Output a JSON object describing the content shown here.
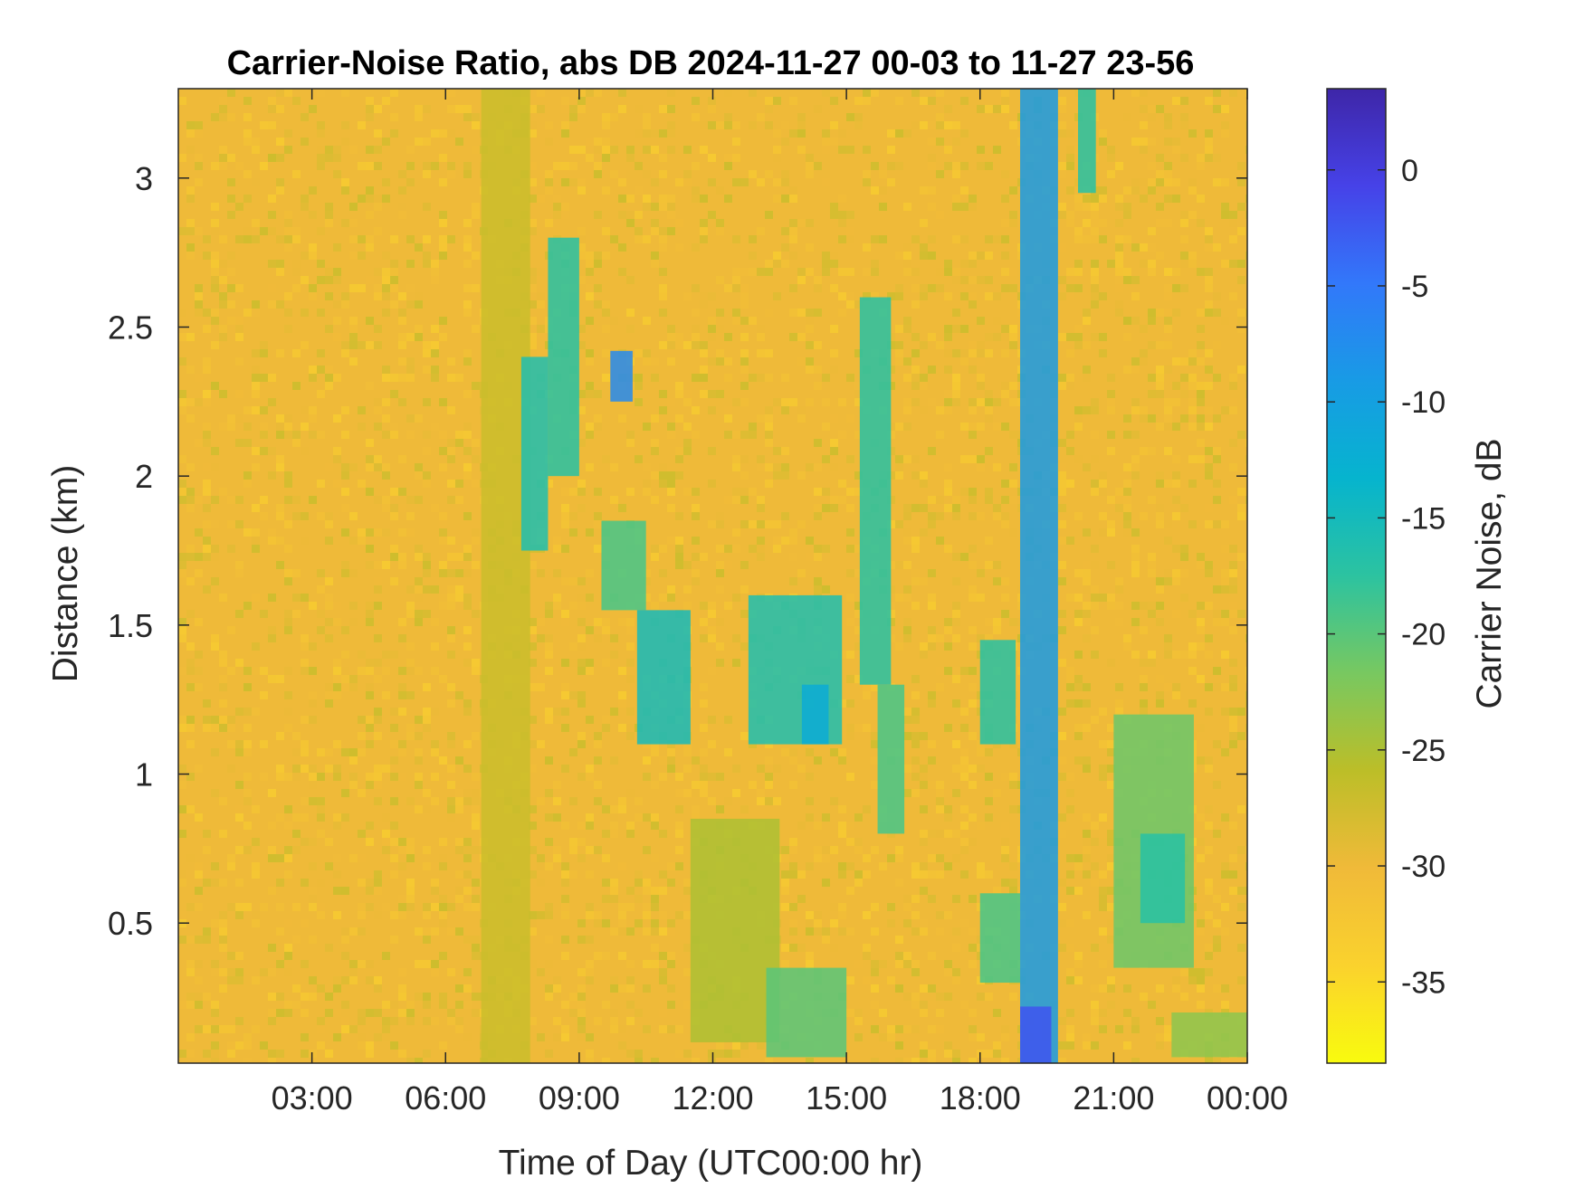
{
  "chart_data": {
    "type": "heatmap",
    "title": "Carrier-Noise Ratio, abs DB 2024-11-27 00-03 to 11-27 23-56",
    "xlabel": "Time of Day (UTC00:00 hr)",
    "ylabel": "Distance (km)",
    "colorbar_label": "Carrier Noise, dB",
    "x_units": "hours",
    "xlim": [
      0.0,
      24.0
    ],
    "ylim": [
      0.03,
      3.3
    ],
    "clim": [
      -38.5,
      3.5
    ],
    "x_ticks": [
      3,
      6,
      9,
      12,
      15,
      18,
      21,
      24
    ],
    "x_tick_labels": [
      "03:00",
      "06:00",
      "09:00",
      "12:00",
      "15:00",
      "18:00",
      "21:00",
      "00:00"
    ],
    "y_ticks": [
      0.5,
      1,
      1.5,
      2,
      2.5,
      3
    ],
    "y_tick_labels": [
      "0.5",
      "1",
      "1.5",
      "2",
      "2.5",
      "3"
    ],
    "colorbar_ticks": [
      0,
      -5,
      -10,
      -15,
      -20,
      -25,
      -30,
      -35
    ],
    "colorbar_tick_labels": [
      "0",
      "-5",
      "-10",
      "-15",
      "-20",
      "-25",
      "-30",
      "-35"
    ],
    "colormap": "parula",
    "background_level_db": -30,
    "features": [
      {
        "t": [
          6.8,
          7.9
        ],
        "d": [
          0.03,
          3.3
        ],
        "db": -27
      },
      {
        "t": [
          7.7,
          8.3
        ],
        "d": [
          1.75,
          2.4
        ],
        "db": -16
      },
      {
        "t": [
          8.3,
          9.0
        ],
        "d": [
          2.0,
          2.8
        ],
        "db": -17
      },
      {
        "t": [
          9.7,
          10.2
        ],
        "d": [
          2.25,
          2.42
        ],
        "db": -7
      },
      {
        "t": [
          9.5,
          10.5
        ],
        "d": [
          1.55,
          1.85
        ],
        "db": -19
      },
      {
        "t": [
          10.3,
          11.5
        ],
        "d": [
          1.1,
          1.55
        ],
        "db": -15
      },
      {
        "t": [
          11.5,
          13.5
        ],
        "d": [
          0.1,
          0.85
        ],
        "db": -25
      },
      {
        "t": [
          12.8,
          14.9
        ],
        "d": [
          1.1,
          1.6
        ],
        "db": -16
      },
      {
        "t": [
          14.0,
          14.6
        ],
        "d": [
          1.1,
          1.3
        ],
        "db": -12
      },
      {
        "t": [
          13.2,
          15.0
        ],
        "d": [
          0.05,
          0.35
        ],
        "db": -20
      },
      {
        "t": [
          15.3,
          16.0
        ],
        "d": [
          1.3,
          2.6
        ],
        "db": -17
      },
      {
        "t": [
          15.7,
          16.3
        ],
        "d": [
          0.8,
          1.3
        ],
        "db": -19
      },
      {
        "t": [
          18.0,
          18.8
        ],
        "d": [
          1.1,
          1.45
        ],
        "db": -17
      },
      {
        "t": [
          18.0,
          18.9
        ],
        "d": [
          0.3,
          0.6
        ],
        "db": -19
      },
      {
        "t": [
          18.9,
          19.75
        ],
        "d": [
          0.03,
          3.3
        ],
        "db": -9
      },
      {
        "t": [
          18.9,
          19.6
        ],
        "d": [
          0.03,
          0.22
        ],
        "db": -2
      },
      {
        "t": [
          20.2,
          20.6
        ],
        "d": [
          2.95,
          3.3
        ],
        "db": -17
      },
      {
        "t": [
          21.0,
          22.8
        ],
        "d": [
          0.35,
          1.2
        ],
        "db": -21
      },
      {
        "t": [
          21.6,
          22.6
        ],
        "d": [
          0.5,
          0.8
        ],
        "db": -17
      },
      {
        "t": [
          22.3,
          24.0
        ],
        "d": [
          0.05,
          0.2
        ],
        "db": -23
      }
    ]
  }
}
